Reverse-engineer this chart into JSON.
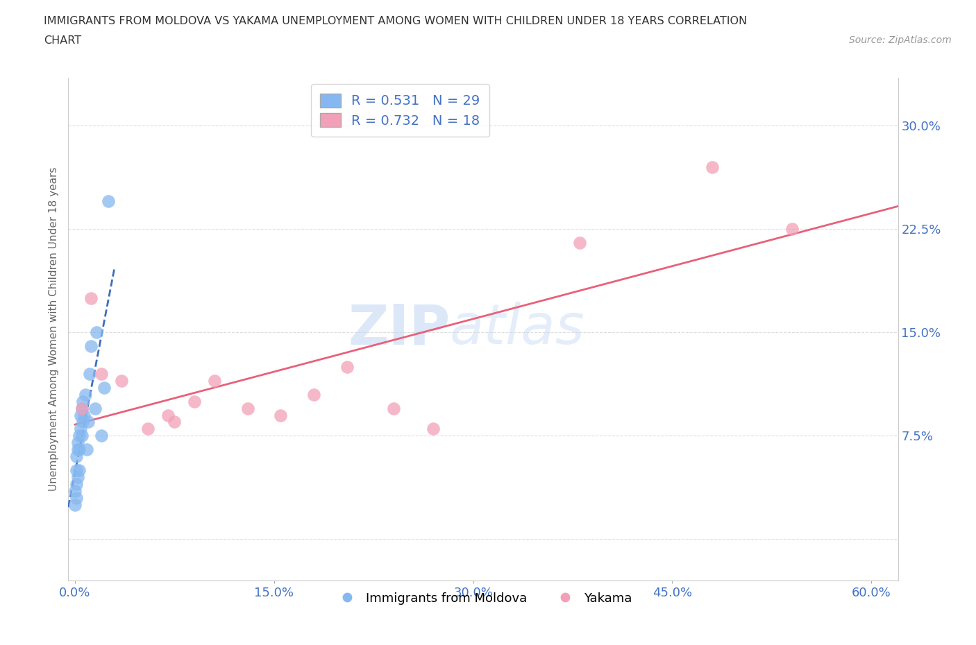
{
  "title_line1": "IMMIGRANTS FROM MOLDOVA VS YAKAMA UNEMPLOYMENT AMONG WOMEN WITH CHILDREN UNDER 18 YEARS CORRELATION",
  "title_line2": "CHART",
  "source_text": "Source: ZipAtlas.com",
  "ylabel": "Unemployment Among Women with Children Under 18 years",
  "xlabel": "",
  "xlim": [
    -0.005,
    0.62
  ],
  "ylim": [
    -0.03,
    0.335
  ],
  "xticks": [
    0.0,
    0.15,
    0.3,
    0.45,
    0.6
  ],
  "xtick_labels": [
    "0.0%",
    "15.0%",
    "30.0%",
    "45.0%",
    "60.0%"
  ],
  "yticks": [
    0.0,
    0.075,
    0.15,
    0.225,
    0.3
  ],
  "ytick_labels": [
    "",
    "7.5%",
    "15.0%",
    "22.5%",
    "30.0%"
  ],
  "watermark_zip": "ZIP",
  "watermark_atlas": "atlas",
  "legend_r1": "R = 0.531",
  "legend_n1": "N = 29",
  "legend_r2": "R = 0.732",
  "legend_n2": "N = 18",
  "blue_color": "#85b8f0",
  "pink_color": "#f2a0b8",
  "blue_line_color": "#3d6fbd",
  "pink_line_color": "#e8607a",
  "moldova_x": [
    0.0,
    0.0,
    0.001,
    0.001,
    0.001,
    0.001,
    0.002,
    0.002,
    0.002,
    0.003,
    0.003,
    0.003,
    0.004,
    0.004,
    0.005,
    0.005,
    0.006,
    0.006,
    0.007,
    0.008,
    0.009,
    0.01,
    0.011,
    0.012,
    0.015,
    0.016,
    0.02,
    0.022,
    0.025
  ],
  "moldova_y": [
    0.025,
    0.035,
    0.03,
    0.04,
    0.05,
    0.06,
    0.045,
    0.065,
    0.07,
    0.05,
    0.065,
    0.075,
    0.08,
    0.09,
    0.075,
    0.095,
    0.085,
    0.1,
    0.09,
    0.105,
    0.065,
    0.085,
    0.12,
    0.14,
    0.095,
    0.15,
    0.075,
    0.11,
    0.245
  ],
  "yakama_x": [
    0.005,
    0.012,
    0.02,
    0.035,
    0.055,
    0.07,
    0.075,
    0.09,
    0.105,
    0.13,
    0.155,
    0.18,
    0.205,
    0.24,
    0.27,
    0.38,
    0.48,
    0.54
  ],
  "yakama_y": [
    0.095,
    0.175,
    0.12,
    0.115,
    0.08,
    0.09,
    0.085,
    0.1,
    0.115,
    0.095,
    0.09,
    0.105,
    0.125,
    0.095,
    0.08,
    0.215,
    0.27,
    0.225
  ],
  "grid_color": "#dddddd",
  "background_color": "#ffffff",
  "bottom_legend_label1": "Immigrants from Moldova",
  "bottom_legend_label2": "Yakama"
}
